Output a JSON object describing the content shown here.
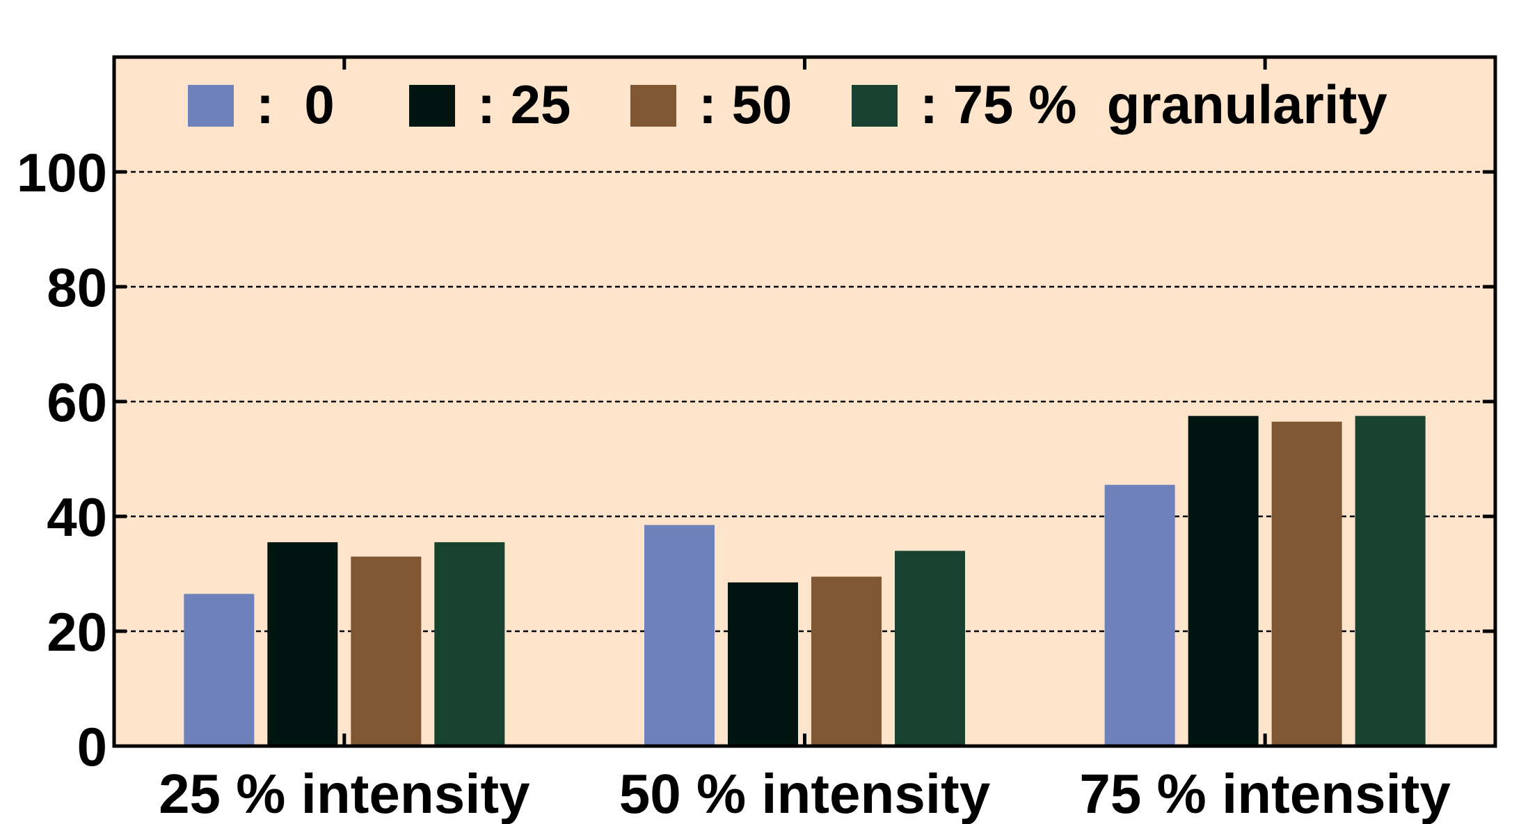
{
  "chart_data": {
    "type": "bar",
    "categories": [
      "25 % intensity",
      "50 % intensity",
      "75 % intensity"
    ],
    "series": [
      {
        "name": ":  0",
        "color": "#6F81BA",
        "values": [
          26.5,
          38.5,
          45.5
        ]
      },
      {
        "name": ": 25",
        "color": "#031510",
        "values": [
          35.5,
          28.5,
          57.5
        ]
      },
      {
        "name": ": 50",
        "color": "#7F5833",
        "values": [
          33,
          29.5,
          56.5
        ]
      },
      {
        "name": ": 75 %  granularity",
        "color": "#16422F",
        "values": [
          35.5,
          34,
          57.5
        ]
      }
    ],
    "ylim": [
      0,
      120
    ],
    "yticks": [
      0,
      20,
      40,
      60,
      80,
      100
    ],
    "grid": true,
    "plot_background": "#FEE4CA",
    "legend_position": "top-inside",
    "title": "",
    "xlabel": "",
    "ylabel": ""
  }
}
